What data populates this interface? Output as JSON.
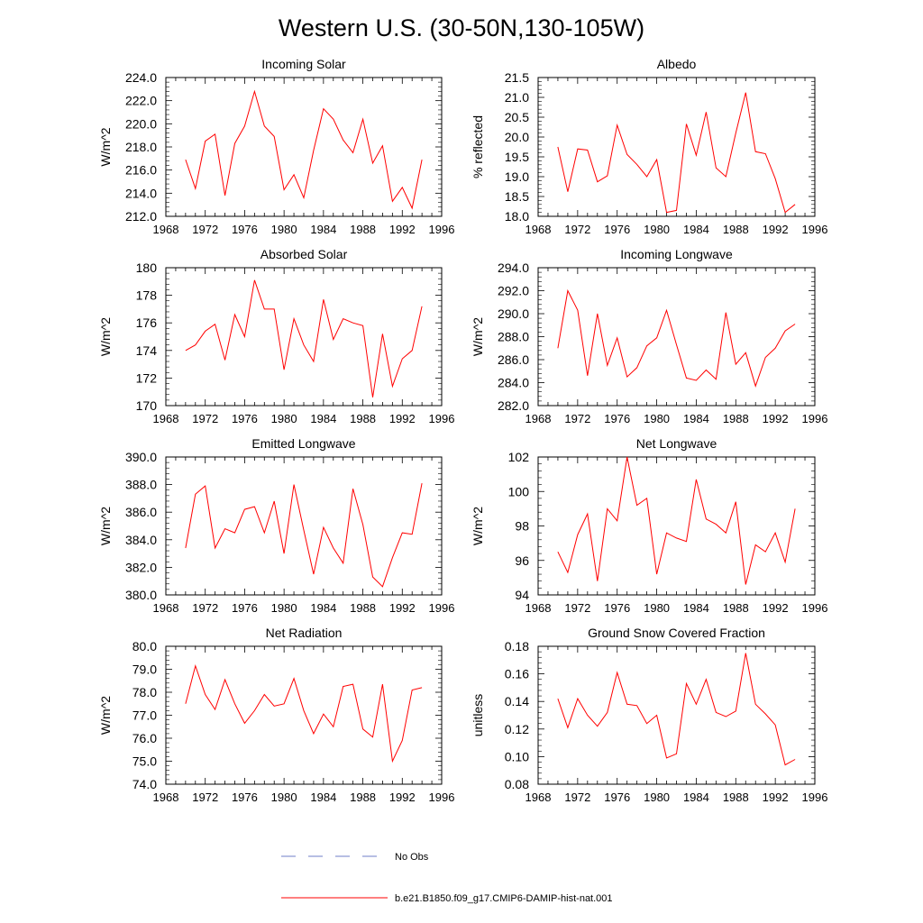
{
  "title": "Western U.S. (30-50N,130-105W)",
  "colors": {
    "model_line": "#ff0000",
    "obs_line": "#6f7cc8",
    "axis": "#000000"
  },
  "legend": [
    {
      "label": "No Obs",
      "style": "dashed",
      "color": "#6f7cc8"
    },
    {
      "label": "b.e21.B1850.f09_g17.CMIP6-DAMIP-hist-nat.001",
      "style": "solid",
      "color": "#ff0000"
    }
  ],
  "chart_data": [
    {
      "type": "line",
      "title": "Incoming Solar",
      "ylabel": "W/m^2",
      "xlim": [
        1968,
        1996
      ],
      "ylim": [
        212,
        224
      ],
      "yticks": [
        212,
        214,
        216,
        218,
        220,
        222,
        224
      ],
      "ytick_labels": [
        "212.0",
        "214.0",
        "216.0",
        "218.0",
        "220.0",
        "222.0",
        "224.0"
      ],
      "x": [
        1970,
        1971,
        1972,
        1973,
        1974,
        1975,
        1976,
        1977,
        1978,
        1979,
        1980,
        1981,
        1982,
        1983,
        1984,
        1985,
        1986,
        1987,
        1988,
        1989,
        1990,
        1991,
        1992,
        1993,
        1994
      ],
      "series": [
        {
          "values": [
            216.9,
            214.4,
            218.5,
            219.1,
            213.8,
            218.3,
            219.8,
            222.8,
            219.8,
            218.9,
            214.3,
            215.6,
            213.6,
            217.7,
            221.3,
            220.4,
            218.6,
            217.5,
            220.4,
            216.6,
            218.1,
            213.3,
            214.5,
            212.7,
            216.9
          ]
        }
      ]
    },
    {
      "type": "line",
      "title": "Albedo",
      "ylabel": "% reflected",
      "xlim": [
        1968,
        1996
      ],
      "ylim": [
        18.0,
        21.5
      ],
      "yticks": [
        18.0,
        18.5,
        19.0,
        19.5,
        20.0,
        20.5,
        21.0,
        21.5
      ],
      "ytick_labels": [
        "18.0",
        "18.5",
        "19.0",
        "19.5",
        "20.0",
        "20.5",
        "21.0",
        "21.5"
      ],
      "x": [
        1970,
        1971,
        1972,
        1973,
        1974,
        1975,
        1976,
        1977,
        1978,
        1979,
        1980,
        1981,
        1982,
        1983,
        1984,
        1985,
        1986,
        1987,
        1988,
        1989,
        1990,
        1991,
        1992,
        1993,
        1994
      ],
      "series": [
        {
          "values": [
            19.75,
            18.62,
            19.7,
            19.67,
            18.87,
            19.02,
            20.3,
            19.56,
            19.31,
            19.0,
            19.43,
            18.1,
            18.15,
            20.33,
            19.54,
            20.63,
            19.22,
            19.0,
            20.1,
            21.12,
            19.63,
            19.58,
            18.95,
            18.1,
            18.3
          ]
        }
      ]
    },
    {
      "type": "line",
      "title": "Absorbed Solar",
      "ylabel": "W/m^2",
      "xlim": [
        1968,
        1996
      ],
      "ylim": [
        170,
        180
      ],
      "yticks": [
        170,
        172,
        174,
        176,
        178,
        180
      ],
      "ytick_labels": [
        "170",
        "172",
        "174",
        "176",
        "178",
        "180"
      ],
      "x": [
        1970,
        1971,
        1972,
        1973,
        1974,
        1975,
        1976,
        1977,
        1978,
        1979,
        1980,
        1981,
        1982,
        1983,
        1984,
        1985,
        1986,
        1987,
        1988,
        1989,
        1990,
        1991,
        1992,
        1993,
        1994
      ],
      "series": [
        {
          "values": [
            174.0,
            174.4,
            175.4,
            175.9,
            173.3,
            176.6,
            175.0,
            179.1,
            177.0,
            177.0,
            172.6,
            176.3,
            174.4,
            173.2,
            177.7,
            174.8,
            176.3,
            176.0,
            175.8,
            170.6,
            175.2,
            171.4,
            173.4,
            174.0,
            177.2
          ]
        }
      ]
    },
    {
      "type": "line",
      "title": "Incoming Longwave",
      "ylabel": "W/m^2",
      "xlim": [
        1968,
        1996
      ],
      "ylim": [
        282,
        294
      ],
      "yticks": [
        282,
        284,
        286,
        288,
        290,
        292,
        294
      ],
      "ytick_labels": [
        "282.0",
        "284.0",
        "286.0",
        "288.0",
        "290.0",
        "292.0",
        "294.0"
      ],
      "x": [
        1970,
        1971,
        1972,
        1973,
        1974,
        1975,
        1976,
        1977,
        1978,
        1979,
        1980,
        1981,
        1982,
        1983,
        1984,
        1985,
        1986,
        1987,
        1988,
        1989,
        1990,
        1991,
        1992,
        1993,
        1994
      ],
      "series": [
        {
          "values": [
            287.0,
            292.0,
            290.3,
            284.6,
            290.0,
            285.5,
            287.9,
            284.5,
            285.3,
            287.2,
            287.9,
            290.3,
            287.3,
            284.4,
            284.2,
            285.1,
            284.3,
            290.1,
            285.6,
            286.6,
            283.7,
            286.2,
            287.0,
            288.5,
            289.1
          ]
        }
      ]
    },
    {
      "type": "line",
      "title": "Emitted Longwave",
      "ylabel": "W/m^2",
      "xlim": [
        1968,
        1996
      ],
      "ylim": [
        380,
        390
      ],
      "yticks": [
        380,
        382,
        384,
        386,
        388,
        390
      ],
      "ytick_labels": [
        "380.0",
        "382.0",
        "384.0",
        "386.0",
        "388.0",
        "390.0"
      ],
      "x": [
        1970,
        1971,
        1972,
        1973,
        1974,
        1975,
        1976,
        1977,
        1978,
        1979,
        1980,
        1981,
        1982,
        1983,
        1984,
        1985,
        1986,
        1987,
        1988,
        1989,
        1990,
        1991,
        1992,
        1993,
        1994
      ],
      "series": [
        {
          "values": [
            383.4,
            387.3,
            387.9,
            383.4,
            384.8,
            384.5,
            386.2,
            386.4,
            384.5,
            386.8,
            383.0,
            388.0,
            384.7,
            381.5,
            384.9,
            383.4,
            382.3,
            387.7,
            385.1,
            381.3,
            380.6,
            382.7,
            384.5,
            384.4,
            388.1
          ]
        }
      ]
    },
    {
      "type": "line",
      "title": "Net Longwave",
      "ylabel": "W/m^2",
      "xlim": [
        1968,
        1996
      ],
      "ylim": [
        94,
        102
      ],
      "yticks": [
        94,
        96,
        98,
        100,
        102
      ],
      "ytick_labels": [
        "94",
        "96",
        "98",
        "100",
        "102"
      ],
      "x": [
        1970,
        1971,
        1972,
        1973,
        1974,
        1975,
        1976,
        1977,
        1978,
        1979,
        1980,
        1981,
        1982,
        1983,
        1984,
        1985,
        1986,
        1987,
        1988,
        1989,
        1990,
        1991,
        1992,
        1993,
        1994
      ],
      "series": [
        {
          "values": [
            96.5,
            95.3,
            97.5,
            98.7,
            94.8,
            99.0,
            98.3,
            102.0,
            99.2,
            99.6,
            95.2,
            97.6,
            97.3,
            97.1,
            100.7,
            98.4,
            98.1,
            97.6,
            99.4,
            94.6,
            96.9,
            96.5,
            97.6,
            95.9,
            99.0
          ]
        }
      ]
    },
    {
      "type": "line",
      "title": "Net Radiation",
      "ylabel": "W/m^2",
      "xlim": [
        1968,
        1996
      ],
      "ylim": [
        74,
        80
      ],
      "yticks": [
        74,
        75,
        76,
        77,
        78,
        79,
        80
      ],
      "ytick_labels": [
        "74.0",
        "75.0",
        "76.0",
        "77.0",
        "78.0",
        "79.0",
        "80.0"
      ],
      "x": [
        1970,
        1971,
        1972,
        1973,
        1974,
        1975,
        1976,
        1977,
        1978,
        1979,
        1980,
        1981,
        1982,
        1983,
        1984,
        1985,
        1986,
        1987,
        1988,
        1989,
        1990,
        1991,
        1992,
        1993,
        1994
      ],
      "series": [
        {
          "values": [
            77.5,
            79.15,
            77.9,
            77.25,
            78.55,
            77.5,
            76.65,
            77.2,
            77.9,
            77.4,
            77.5,
            78.6,
            77.2,
            76.2,
            77.05,
            76.5,
            78.25,
            78.35,
            76.4,
            76.05,
            78.35,
            75.0,
            75.9,
            78.1,
            78.2
          ]
        }
      ]
    },
    {
      "type": "line",
      "title": "Ground Snow Covered Fraction",
      "ylabel": "unitless",
      "xlim": [
        1968,
        1996
      ],
      "ylim": [
        0.08,
        0.18
      ],
      "yticks": [
        0.08,
        0.1,
        0.12,
        0.14,
        0.16,
        0.18
      ],
      "ytick_labels": [
        "0.08",
        "0.10",
        "0.12",
        "0.14",
        "0.16",
        "0.18"
      ],
      "x": [
        1970,
        1971,
        1972,
        1973,
        1974,
        1975,
        1976,
        1977,
        1978,
        1979,
        1980,
        1981,
        1982,
        1983,
        1984,
        1985,
        1986,
        1987,
        1988,
        1989,
        1990,
        1991,
        1992,
        1993,
        1994
      ],
      "series": [
        {
          "values": [
            0.142,
            0.121,
            0.142,
            0.13,
            0.122,
            0.132,
            0.161,
            0.138,
            0.137,
            0.124,
            0.13,
            0.099,
            0.102,
            0.153,
            0.138,
            0.156,
            0.132,
            0.129,
            0.133,
            0.175,
            0.138,
            0.131,
            0.123,
            0.094,
            0.098
          ]
        }
      ]
    }
  ],
  "xtick_labels": [
    "1968",
    "1972",
    "1976",
    "1980",
    "1984",
    "1988",
    "1992",
    "1996"
  ]
}
